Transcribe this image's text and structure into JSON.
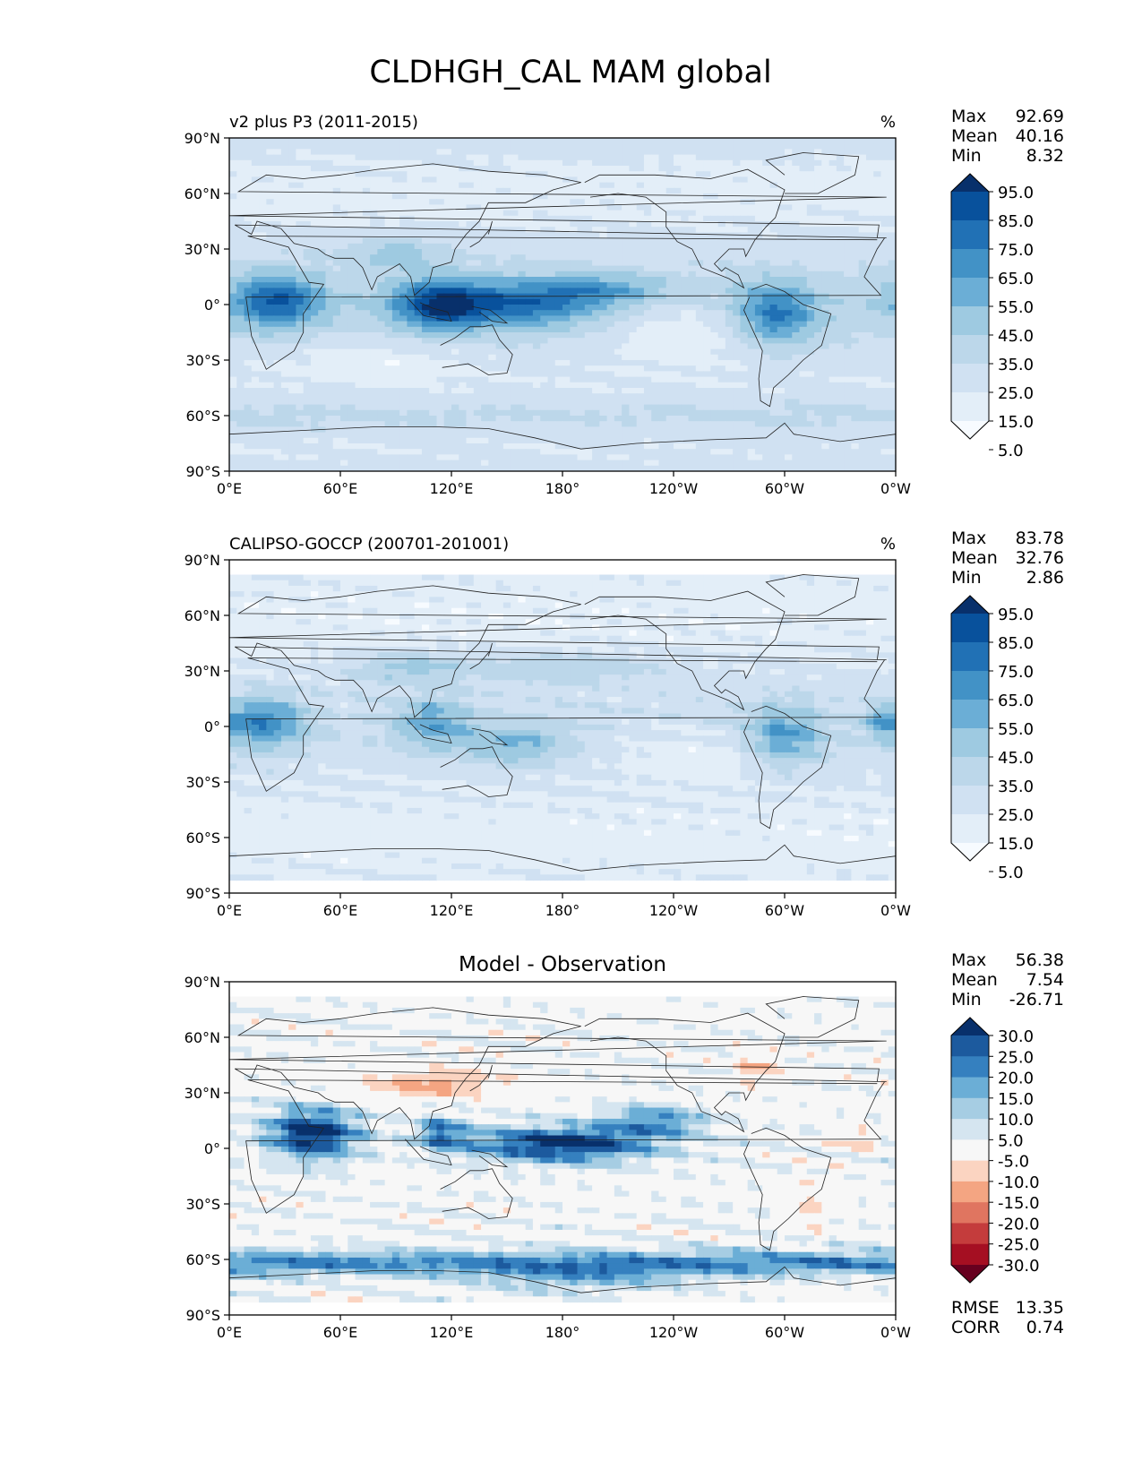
{
  "figure": {
    "title": "CLDHGH_CAL MAM global"
  },
  "chart_data": [
    {
      "type": "heatmap",
      "title": "v2 plus P3 (2011-2015)",
      "units": "%",
      "xticks": [
        "0°E",
        "60°E",
        "120°E",
        "180°",
        "120°W",
        "60°W",
        "0°W"
      ],
      "yticks": [
        "90°N",
        "60°N",
        "30°N",
        "0°",
        "30°S",
        "60°S",
        "90°S"
      ],
      "xlim": [
        0,
        360
      ],
      "ylim": [
        -90,
        90
      ],
      "stats": [
        {
          "label": "Max",
          "value": "92.69"
        },
        {
          "label": "Mean",
          "value": "40.16"
        },
        {
          "label": "Min",
          "value": "8.32"
        }
      ],
      "colorbar": {
        "labels": [
          "95.0",
          "85.0",
          "75.0",
          "65.0",
          "55.0",
          "45.0",
          "35.0",
          "25.0",
          "15.0",
          "5.0"
        ],
        "colors": [
          "#08306b",
          "#08519c",
          "#2171b5",
          "#4292c6",
          "#6baed6",
          "#9ecae1",
          "#bcd7ea",
          "#d0e1f2",
          "#e3eef8",
          "#f7fbff"
        ],
        "extend": "both"
      },
      "field": "model",
      "data_coverage": [
        -90,
        90
      ]
    },
    {
      "type": "heatmap",
      "title": "CALIPSO-GOCCP (200701-201001)",
      "units": "%",
      "xticks": [
        "0°E",
        "60°E",
        "120°E",
        "180°",
        "120°W",
        "60°W",
        "0°W"
      ],
      "yticks": [
        "90°N",
        "60°N",
        "30°N",
        "0°",
        "30°S",
        "60°S",
        "90°S"
      ],
      "xlim": [
        0,
        360
      ],
      "ylim": [
        -90,
        90
      ],
      "stats": [
        {
          "label": "Max",
          "value": "83.78"
        },
        {
          "label": "Mean",
          "value": "32.76"
        },
        {
          "label": "Min",
          "value": "2.86"
        }
      ],
      "colorbar": {
        "labels": [
          "95.0",
          "85.0",
          "75.0",
          "65.0",
          "55.0",
          "45.0",
          "35.0",
          "25.0",
          "15.0",
          "5.0"
        ],
        "colors": [
          "#08306b",
          "#08519c",
          "#2171b5",
          "#4292c6",
          "#6baed6",
          "#9ecae1",
          "#bcd7ea",
          "#d0e1f2",
          "#e3eef8",
          "#f7fbff"
        ],
        "extend": "both"
      },
      "field": "obs",
      "data_coverage": [
        -82,
        82
      ]
    },
    {
      "type": "heatmap",
      "title": "Model - Observation",
      "units": "",
      "xticks": [
        "0°E",
        "60°E",
        "120°E",
        "180°",
        "120°W",
        "60°W",
        "0°W"
      ],
      "yticks": [
        "90°N",
        "60°N",
        "30°N",
        "0°",
        "30°S",
        "60°S",
        "90°S"
      ],
      "xlim": [
        0,
        360
      ],
      "ylim": [
        -90,
        90
      ],
      "stats": [
        {
          "label": "Max",
          "value": "56.38"
        },
        {
          "label": "Mean",
          "value": "7.54"
        },
        {
          "label": "Min",
          "value": "-26.71"
        }
      ],
      "extra_stats": [
        {
          "label": "RMSE",
          "value": "13.35"
        },
        {
          "label": "CORR",
          "value": "0.74"
        }
      ],
      "colorbar": {
        "labels": [
          "30.0",
          "25.0",
          "20.0",
          "15.0",
          "10.0",
          "5.0",
          "-5.0",
          "-10.0",
          "-15.0",
          "-20.0",
          "-25.0",
          "-30.0"
        ],
        "colors": [
          "#08306b",
          "#1c5a9e",
          "#3580bf",
          "#6baed6",
          "#a6cde3",
          "#d5e5f0",
          "#f7f7f7",
          "#fbd4c1",
          "#f4a582",
          "#e07560",
          "#c43c3c",
          "#a50f22",
          "#67001f"
        ],
        "extend": "both"
      },
      "field": "diff",
      "data_coverage": [
        -82,
        82
      ]
    }
  ]
}
